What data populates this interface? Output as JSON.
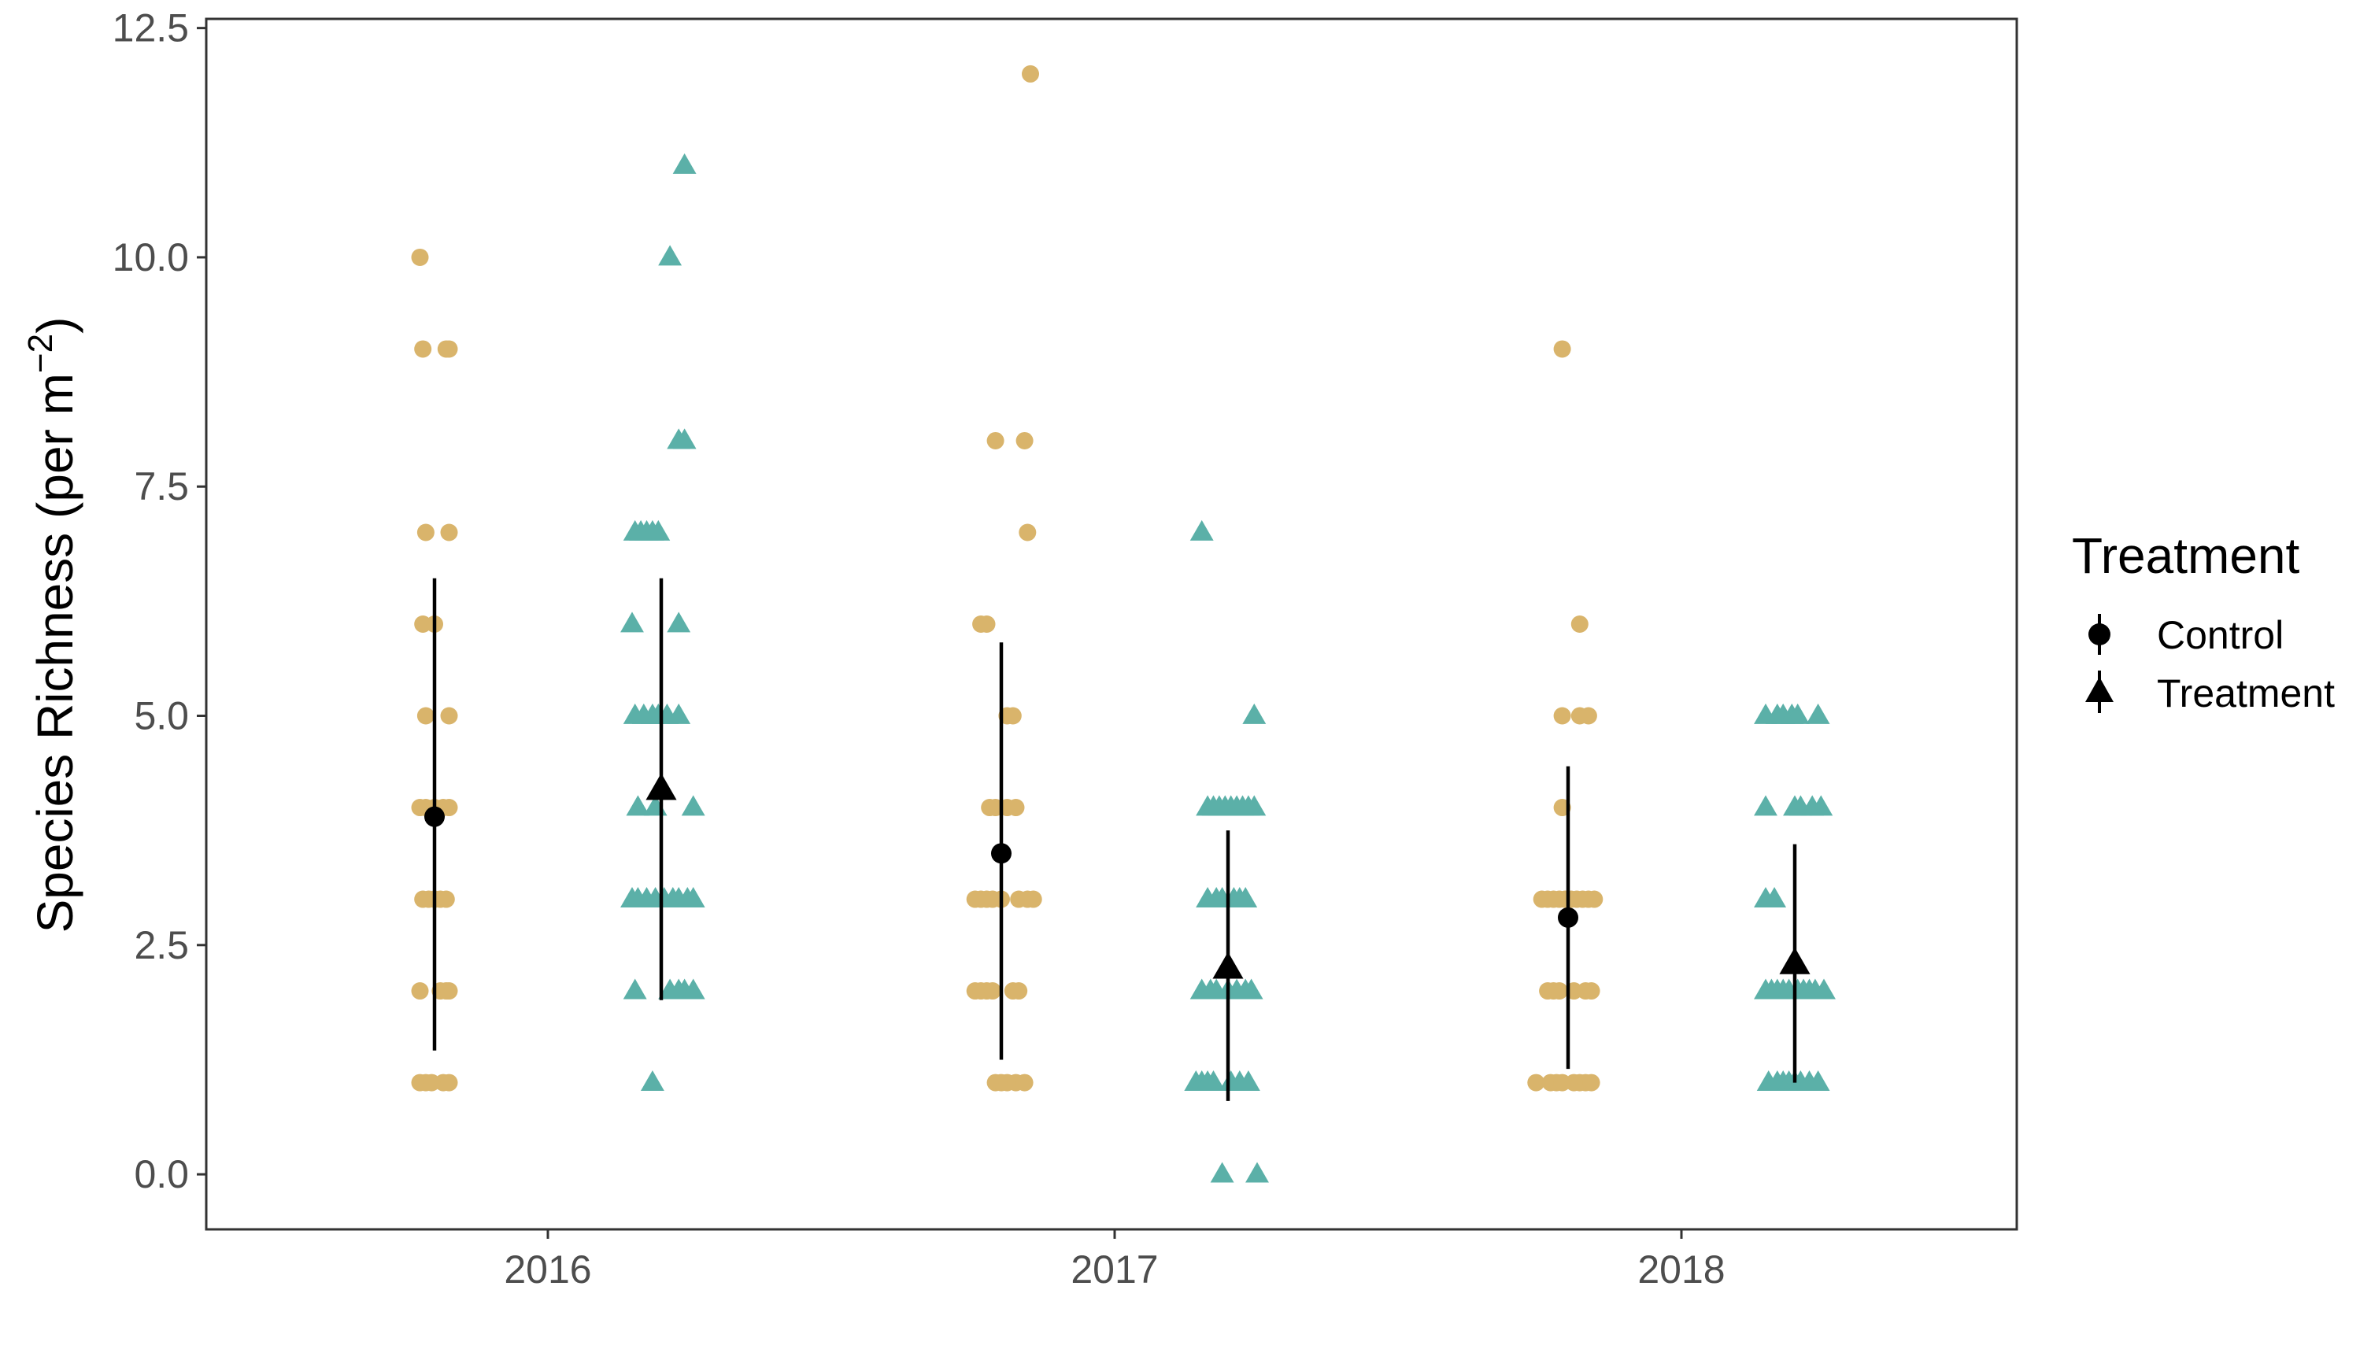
{
  "chart_data": {
    "type": "scatter",
    "categories": [
      "2016",
      "2017",
      "2018"
    ],
    "xlabel": "",
    "ylabel": "Species Richness (per m",
    "ylabel_sup": "−2",
    "ylabel_close": ")",
    "ylim": [
      -0.6,
      12.6
    ],
    "yticks": [
      0.0,
      2.5,
      5.0,
      7.5,
      10.0,
      12.5
    ],
    "ytick_labels": [
      "0.0",
      "2.5",
      "5.0",
      "7.5",
      "10.0",
      "12.5"
    ],
    "grid": false,
    "legend": {
      "title": "Treatment",
      "placement": "right",
      "items": [
        {
          "label": "Control",
          "shape": "circle"
        },
        {
          "label": "Treatment",
          "shape": "triangle"
        }
      ]
    },
    "colors": {
      "Control": "#D9B46B",
      "Treatment": "#5BB0A8",
      "summary": "#000000"
    },
    "series": [
      {
        "name": "Control",
        "shape": "circle",
        "groups": [
          {
            "category": "2016",
            "mean": 3.9,
            "lower": 1.35,
            "upper": 6.5,
            "points": [
              [
                -0.25,
                10
              ],
              [
                -0.2,
                9
              ],
              [
                0.2,
                9
              ],
              [
                0.25,
                9
              ],
              [
                -0.15,
                7
              ],
              [
                0.25,
                7
              ],
              [
                -0.2,
                6
              ],
              [
                0.0,
                6
              ],
              [
                -0.15,
                5
              ],
              [
                0.25,
                5
              ],
              [
                -0.25,
                4
              ],
              [
                -0.15,
                4
              ],
              [
                0.0,
                4
              ],
              [
                0.15,
                4
              ],
              [
                0.25,
                4
              ],
              [
                -0.2,
                3
              ],
              [
                -0.1,
                3
              ],
              [
                0.0,
                3
              ],
              [
                0.1,
                3
              ],
              [
                0.2,
                3
              ],
              [
                -0.25,
                2
              ],
              [
                0.1,
                2
              ],
              [
                0.2,
                2
              ],
              [
                0.25,
                2
              ],
              [
                -0.25,
                1
              ],
              [
                -0.15,
                1
              ],
              [
                -0.05,
                1
              ],
              [
                0.15,
                1
              ],
              [
                0.25,
                1
              ]
            ]
          },
          {
            "category": "2017",
            "mean": 3.5,
            "lower": 1.25,
            "upper": 5.8,
            "points": [
              [
                0.5,
                12
              ],
              [
                -0.1,
                8
              ],
              [
                0.4,
                8
              ],
              [
                0.45,
                7
              ],
              [
                -0.35,
                6
              ],
              [
                -0.25,
                6
              ],
              [
                0.1,
                5
              ],
              [
                0.2,
                5
              ],
              [
                -0.2,
                4
              ],
              [
                -0.1,
                4
              ],
              [
                0.1,
                4
              ],
              [
                0.25,
                4
              ],
              [
                -0.45,
                3
              ],
              [
                -0.35,
                3
              ],
              [
                -0.25,
                3
              ],
              [
                -0.15,
                3
              ],
              [
                0.0,
                3
              ],
              [
                0.3,
                3
              ],
              [
                0.45,
                3
              ],
              [
                0.55,
                3
              ],
              [
                -0.45,
                2
              ],
              [
                -0.35,
                2
              ],
              [
                -0.25,
                2
              ],
              [
                -0.15,
                2
              ],
              [
                0.2,
                2
              ],
              [
                0.3,
                2
              ],
              [
                -0.1,
                1
              ],
              [
                0.0,
                1
              ],
              [
                0.1,
                1
              ],
              [
                0.25,
                1
              ],
              [
                0.4,
                1
              ]
            ]
          },
          {
            "category": "2018",
            "mean": 2.8,
            "lower": 1.15,
            "upper": 4.45,
            "points": [
              [
                -0.1,
                9
              ],
              [
                0.2,
                6
              ],
              [
                -0.1,
                5
              ],
              [
                0.2,
                5
              ],
              [
                0.35,
                5
              ],
              [
                -0.1,
                4
              ],
              [
                -0.45,
                3
              ],
              [
                -0.35,
                3
              ],
              [
                -0.25,
                3
              ],
              [
                -0.15,
                3
              ],
              [
                -0.05,
                3
              ],
              [
                0.05,
                3
              ],
              [
                0.15,
                3
              ],
              [
                0.25,
                3
              ],
              [
                0.35,
                3
              ],
              [
                0.45,
                3
              ],
              [
                -0.35,
                2
              ],
              [
                -0.25,
                2
              ],
              [
                -0.15,
                2
              ],
              [
                0.1,
                2
              ],
              [
                0.3,
                2
              ],
              [
                0.4,
                2
              ],
              [
                -0.55,
                1
              ],
              [
                -0.3,
                1
              ],
              [
                -0.2,
                1
              ],
              [
                -0.1,
                1
              ],
              [
                0.1,
                1
              ],
              [
                0.2,
                1
              ],
              [
                0.3,
                1
              ],
              [
                0.4,
                1
              ]
            ]
          }
        ]
      },
      {
        "name": "Treatment",
        "shape": "triangle",
        "groups": [
          {
            "category": "2016",
            "mean": 4.2,
            "lower": 1.9,
            "upper": 6.5,
            "points": [
              [
                0.4,
                11
              ],
              [
                0.15,
                10
              ],
              [
                0.3,
                8
              ],
              [
                0.4,
                8
              ],
              [
                -0.45,
                7
              ],
              [
                -0.35,
                7
              ],
              [
                -0.25,
                7
              ],
              [
                -0.15,
                7
              ],
              [
                -0.05,
                7
              ],
              [
                -0.5,
                6
              ],
              [
                0.3,
                6
              ],
              [
                -0.45,
                5
              ],
              [
                -0.3,
                5
              ],
              [
                -0.15,
                5
              ],
              [
                -0.05,
                5
              ],
              [
                0.1,
                5
              ],
              [
                0.3,
                5
              ],
              [
                -0.4,
                4
              ],
              [
                -0.1,
                4
              ],
              [
                0.55,
                4
              ],
              [
                -0.5,
                3
              ],
              [
                -0.4,
                3
              ],
              [
                -0.25,
                3
              ],
              [
                -0.1,
                3
              ],
              [
                0.05,
                3
              ],
              [
                0.2,
                3
              ],
              [
                0.3,
                3
              ],
              [
                0.45,
                3
              ],
              [
                0.55,
                3
              ],
              [
                -0.45,
                2
              ],
              [
                0.15,
                2
              ],
              [
                0.3,
                2
              ],
              [
                0.4,
                2
              ],
              [
                0.55,
                2
              ],
              [
                -0.15,
                1
              ]
            ]
          },
          {
            "category": "2017",
            "mean": 2.25,
            "lower": 0.8,
            "upper": 3.75,
            "points": [
              [
                -0.45,
                7
              ],
              [
                0.45,
                5
              ],
              [
                -0.35,
                4
              ],
              [
                -0.25,
                4
              ],
              [
                -0.15,
                4
              ],
              [
                -0.05,
                4
              ],
              [
                0.05,
                4
              ],
              [
                0.15,
                4
              ],
              [
                0.25,
                4
              ],
              [
                0.35,
                4
              ],
              [
                0.45,
                4
              ],
              [
                -0.35,
                3
              ],
              [
                -0.2,
                3
              ],
              [
                -0.1,
                3
              ],
              [
                0.1,
                3
              ],
              [
                0.2,
                3
              ],
              [
                0.3,
                3
              ],
              [
                -0.45,
                2
              ],
              [
                -0.3,
                2
              ],
              [
                -0.2,
                2
              ],
              [
                0.0,
                2
              ],
              [
                0.15,
                2
              ],
              [
                0.3,
                2
              ],
              [
                0.4,
                2
              ],
              [
                -0.55,
                1
              ],
              [
                -0.45,
                1
              ],
              [
                -0.35,
                1
              ],
              [
                -0.25,
                1
              ],
              [
                0.05,
                1
              ],
              [
                0.2,
                1
              ],
              [
                0.35,
                1
              ],
              [
                -0.1,
                0
              ],
              [
                0.5,
                0
              ]
            ]
          },
          {
            "category": "2018",
            "mean": 2.3,
            "lower": 1.0,
            "upper": 3.6,
            "points": [
              [
                -0.5,
                5
              ],
              [
                -0.3,
                5
              ],
              [
                -0.2,
                5
              ],
              [
                -0.05,
                5
              ],
              [
                0.05,
                5
              ],
              [
                0.4,
                5
              ],
              [
                -0.5,
                4
              ],
              [
                0.0,
                4
              ],
              [
                0.1,
                4
              ],
              [
                0.3,
                4
              ],
              [
                0.45,
                4
              ],
              [
                -0.5,
                3
              ],
              [
                -0.35,
                3
              ],
              [
                -0.5,
                2
              ],
              [
                -0.4,
                2
              ],
              [
                -0.3,
                2
              ],
              [
                -0.2,
                2
              ],
              [
                -0.1,
                2
              ],
              [
                0.05,
                2
              ],
              [
                0.15,
                2
              ],
              [
                0.25,
                2
              ],
              [
                0.35,
                2
              ],
              [
                0.5,
                2
              ],
              [
                -0.45,
                1
              ],
              [
                -0.3,
                1
              ],
              [
                -0.2,
                1
              ],
              [
                -0.1,
                1
              ],
              [
                0.0,
                1
              ],
              [
                0.1,
                1
              ],
              [
                0.25,
                1
              ],
              [
                0.4,
                1
              ]
            ]
          }
        ]
      }
    ]
  }
}
